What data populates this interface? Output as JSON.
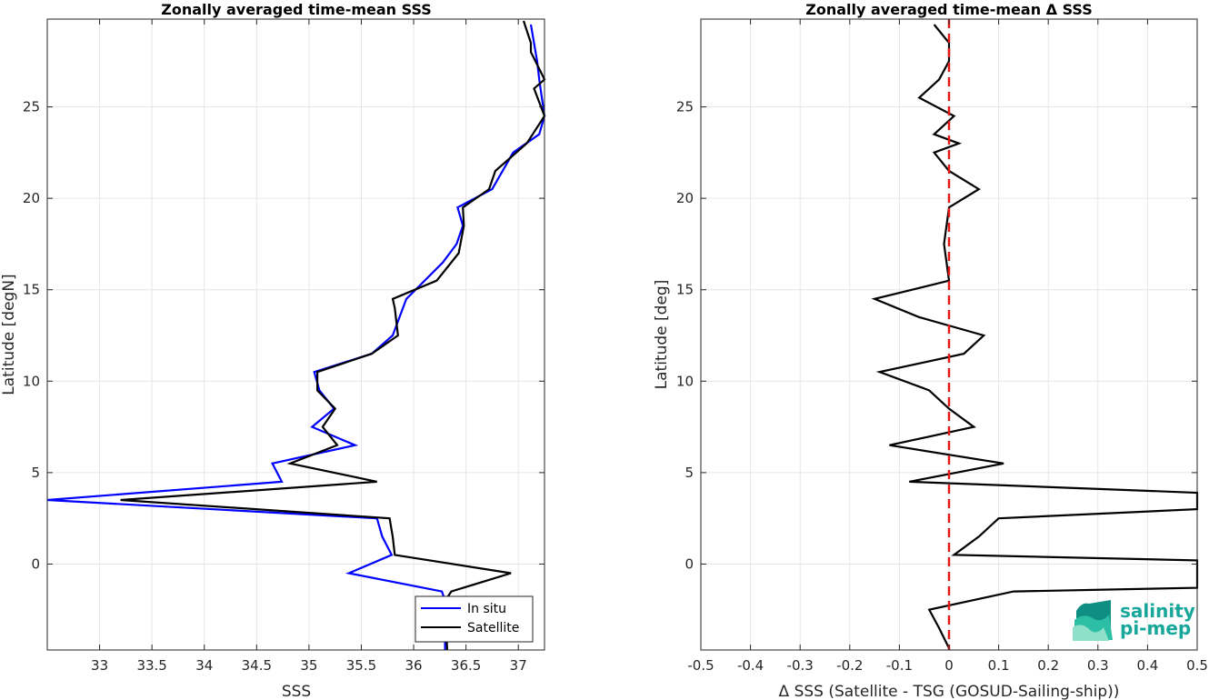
{
  "chart_data": [
    {
      "type": "line",
      "title": "Zonally averaged time-mean SSS",
      "xlabel": "SSS",
      "ylabel": "Latitude [degN]",
      "xlim": [
        32.5,
        37.25
      ],
      "ylim": [
        -4.7,
        29.8
      ],
      "x_ticks": [
        33,
        33.5,
        34,
        34.5,
        35,
        35.5,
        36,
        36.5,
        37
      ],
      "x_tick_labels": [
        "33",
        "33.5",
        "34",
        "34.5",
        "35",
        "35.5",
        "36",
        "36.5",
        "37"
      ],
      "y_ticks": [
        0,
        5,
        10,
        15,
        20,
        25
      ],
      "y_tick_labels": [
        "0",
        "5",
        "10",
        "15",
        "20",
        "25"
      ],
      "grid": true,
      "legend": {
        "placement": "bottom-right",
        "entries": [
          "In situ",
          "Satellite"
        ]
      },
      "series": [
        {
          "name": "In situ",
          "color": "#0000ff",
          "points": [
            [
              36.3,
              -4.7
            ],
            [
              36.3,
              -2.0
            ],
            [
              36.27,
              -1.5
            ],
            [
              35.38,
              -0.5
            ],
            [
              35.79,
              0.5
            ],
            [
              35.7,
              1.5
            ],
            [
              35.65,
              2.5
            ],
            [
              32.5,
              3.5
            ],
            [
              34.74,
              4.5
            ],
            [
              34.65,
              5.5
            ],
            [
              35.44,
              6.5
            ],
            [
              35.03,
              7.5
            ],
            [
              35.24,
              8.5
            ],
            [
              35.1,
              9.5
            ],
            [
              35.05,
              10.5
            ],
            [
              35.6,
              11.5
            ],
            [
              35.8,
              12.5
            ],
            [
              35.93,
              14.5
            ],
            [
              36.28,
              16.5
            ],
            [
              36.41,
              17.5
            ],
            [
              36.47,
              18.5
            ],
            [
              36.42,
              19.5
            ],
            [
              36.75,
              20.5
            ],
            [
              36.95,
              22.5
            ],
            [
              37.2,
              23.5
            ],
            [
              37.25,
              24.5
            ],
            [
              37.2,
              26.5
            ],
            [
              37.18,
              27.5
            ],
            [
              37.12,
              29.5
            ]
          ]
        },
        {
          "name": "Satellite",
          "color": "#000000",
          "points": [
            [
              36.32,
              -4.7
            ],
            [
              36.3,
              -2.0
            ],
            [
              36.36,
              -1.5
            ],
            [
              36.93,
              -0.5
            ],
            [
              35.82,
              0.5
            ],
            [
              35.8,
              1.5
            ],
            [
              35.77,
              2.5
            ],
            [
              33.2,
              3.5
            ],
            [
              35.65,
              4.5
            ],
            [
              34.82,
              5.5
            ],
            [
              35.27,
              6.5
            ],
            [
              35.13,
              7.5
            ],
            [
              35.25,
              8.5
            ],
            [
              35.08,
              9.5
            ],
            [
              35.08,
              10.5
            ],
            [
              35.6,
              11.5
            ],
            [
              35.85,
              12.5
            ],
            [
              35.82,
              14.0
            ],
            [
              35.8,
              14.5
            ],
            [
              36.22,
              15.5
            ],
            [
              36.43,
              17.0
            ],
            [
              36.48,
              18.5
            ],
            [
              36.47,
              19.5
            ],
            [
              36.72,
              20.5
            ],
            [
              36.78,
              21.5
            ],
            [
              37.08,
              23.0
            ],
            [
              37.25,
              24.5
            ],
            [
              37.15,
              26.0
            ],
            [
              37.25,
              26.5
            ],
            [
              37.12,
              28.0
            ],
            [
              37.12,
              28.5
            ],
            [
              37.05,
              29.7
            ]
          ]
        }
      ]
    },
    {
      "type": "line",
      "title": "Zonally averaged time-mean Δ SSS",
      "xlabel": "Δ SSS (Satellite - TSG (GOSUD-Sailing-ship))",
      "ylabel": "Latitude [deg]",
      "xlim": [
        -0.5,
        0.5
      ],
      "ylim": [
        -4.7,
        29.8
      ],
      "x_ticks": [
        -0.5,
        -0.4,
        -0.3,
        -0.2,
        -0.1,
        0,
        0.1,
        0.2,
        0.3,
        0.4,
        0.5
      ],
      "x_tick_labels": [
        "-0.5",
        "-0.4",
        "-0.3",
        "-0.2",
        "-0.1",
        "0",
        "0.1",
        "0.2",
        "0.3",
        "0.4",
        "0.5"
      ],
      "y_ticks": [
        0,
        5,
        10,
        15,
        20,
        25
      ],
      "y_tick_labels": [
        "0",
        "5",
        "10",
        "15",
        "20",
        "25"
      ],
      "grid": true,
      "reference_line": {
        "x": 0,
        "color": "#e41a1a",
        "style": "dashed"
      },
      "series": [
        {
          "color": "#000000",
          "points": [
            [
              0.0,
              -4.6
            ],
            [
              -0.02,
              -3.5
            ],
            [
              -0.04,
              -2.5
            ],
            [
              0.13,
              -1.5
            ],
            [
              0.5,
              -1.3
            ],
            [
              0.5,
              0.2
            ],
            [
              0.01,
              0.5
            ],
            [
              0.06,
              1.5
            ],
            [
              0.1,
              2.5
            ],
            [
              0.5,
              3.0
            ],
            [
              0.5,
              3.9
            ],
            [
              -0.08,
              4.5
            ],
            [
              0.11,
              5.5
            ],
            [
              -0.12,
              6.5
            ],
            [
              0.05,
              7.5
            ],
            [
              0.0,
              8.5
            ],
            [
              -0.04,
              9.5
            ],
            [
              -0.14,
              10.5
            ],
            [
              0.03,
              11.5
            ],
            [
              0.07,
              12.5
            ],
            [
              -0.06,
              13.5
            ],
            [
              -0.15,
              14.5
            ],
            [
              0.0,
              15.5
            ],
            [
              -0.01,
              17.5
            ],
            [
              0.0,
              19.5
            ],
            [
              0.06,
              20.5
            ],
            [
              0.0,
              21.5
            ],
            [
              -0.03,
              22.5
            ],
            [
              0.02,
              23.0
            ],
            [
              -0.03,
              23.5
            ],
            [
              0.01,
              24.5
            ],
            [
              -0.06,
              25.5
            ],
            [
              -0.02,
              26.5
            ],
            [
              0.0,
              27.5
            ],
            [
              0.0,
              28.5
            ],
            [
              -0.03,
              29.5
            ]
          ]
        }
      ]
    }
  ],
  "logo": {
    "line1": "salinity",
    "line2": "pi-mep",
    "color": "#17a79a"
  }
}
